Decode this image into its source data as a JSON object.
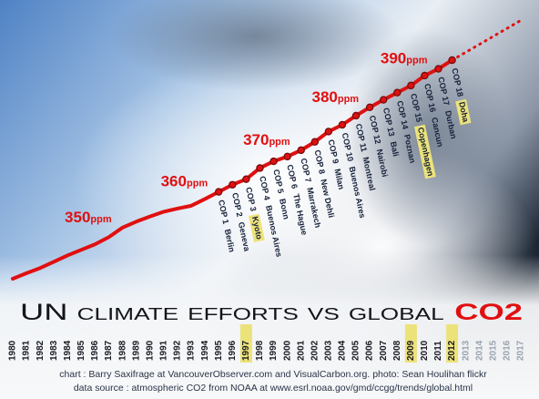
{
  "chart_data": {
    "type": "line",
    "title": "UN climate efforts vs global",
    "title_highlight": "CO2",
    "x": [
      1980,
      1981,
      1982,
      1983,
      1984,
      1985,
      1986,
      1987,
      1988,
      1989,
      1990,
      1991,
      1992,
      1993,
      1994,
      1995,
      1996,
      1997,
      1998,
      1999,
      2000,
      2001,
      2002,
      2003,
      2004,
      2005,
      2006,
      2007,
      2008,
      2009,
      2010,
      2011,
      2012
    ],
    "values": [
      338.7,
      340.1,
      341.4,
      343.0,
      344.6,
      346.0,
      347.4,
      349.2,
      351.6,
      353.1,
      354.4,
      355.6,
      356.4,
      357.1,
      358.8,
      360.6,
      362.4,
      363.8,
      366.6,
      368.3,
      369.5,
      371.1,
      373.2,
      375.8,
      377.5,
      379.8,
      381.9,
      383.8,
      385.6,
      387.4,
      389.9,
      391.6,
      393.8
    ],
    "color": "#e01010",
    "xlim": [
      1980,
      2017
    ],
    "xticks": [
      1980,
      1981,
      1982,
      1983,
      1984,
      1985,
      1986,
      1987,
      1988,
      1989,
      1990,
      1991,
      1992,
      1993,
      1994,
      1995,
      1996,
      1997,
      1998,
      1999,
      2000,
      2001,
      2002,
      2003,
      2004,
      2005,
      2006,
      2007,
      2008,
      2009,
      2010,
      2011,
      2012,
      2013,
      2014,
      2015,
      2016,
      2017
    ],
    "highlight_ticks": [
      1997,
      2009,
      2012
    ],
    "highlight_color": "#ece27a",
    "annotations": [
      {
        "value": 350,
        "unit": "ppm"
      },
      {
        "value": 360,
        "unit": "ppm"
      },
      {
        "value": 370,
        "unit": "ppm"
      },
      {
        "value": 380,
        "unit": "ppm"
      },
      {
        "value": 390,
        "unit": "ppm"
      }
    ],
    "events": [
      {
        "year": 1995,
        "label": "COP 1",
        "city": "Berlin",
        "highlight": false
      },
      {
        "year": 1996,
        "label": "COP 2",
        "city": "Geneva",
        "highlight": false
      },
      {
        "year": 1997,
        "label": "COP 3",
        "city": "Kyoto",
        "highlight": true
      },
      {
        "year": 1998,
        "label": "COP 4",
        "city": "Buenos Aires",
        "highlight": false
      },
      {
        "year": 1999,
        "label": "COP 5",
        "city": "Bonn",
        "highlight": false
      },
      {
        "year": 2000,
        "label": "COP 6",
        "city": "The Hague",
        "highlight": false
      },
      {
        "year": 2001,
        "label": "COP 7",
        "city": "Marrakech",
        "highlight": false
      },
      {
        "year": 2002,
        "label": "COP 8",
        "city": "New Dehli",
        "highlight": false
      },
      {
        "year": 2003,
        "label": "COP 9",
        "city": "Milan",
        "highlight": false
      },
      {
        "year": 2004,
        "label": "COP 10",
        "city": "Buenos Aires",
        "highlight": false
      },
      {
        "year": 2005,
        "label": "COP 11",
        "city": "Montreal",
        "highlight": false
      },
      {
        "year": 2006,
        "label": "COP 12",
        "city": "Nairobi",
        "highlight": false
      },
      {
        "year": 2007,
        "label": "COP 13",
        "city": "Bali",
        "highlight": false
      },
      {
        "year": 2008,
        "label": "COP 14",
        "city": "Poznan",
        "highlight": false
      },
      {
        "year": 2009,
        "label": "COP 15",
        "city": "Copenhagen",
        "highlight": true
      },
      {
        "year": 2010,
        "label": "COP 16",
        "city": "Cancun",
        "highlight": false
      },
      {
        "year": 2011,
        "label": "COP 17",
        "city": "Durban",
        "highlight": false
      },
      {
        "year": 2012,
        "label": "COP 18",
        "city": "Doha",
        "highlight": true
      }
    ],
    "credits": [
      "chart : Barry Saxifrage at VancouverObserver.com and VisualCarbon.org. photo: Sean Houlihan flickr",
      "data source : atmospheric CO2 from NOAA at www.esrl.noaa.gov/gmd/ccgg/trends/global.html"
    ]
  }
}
